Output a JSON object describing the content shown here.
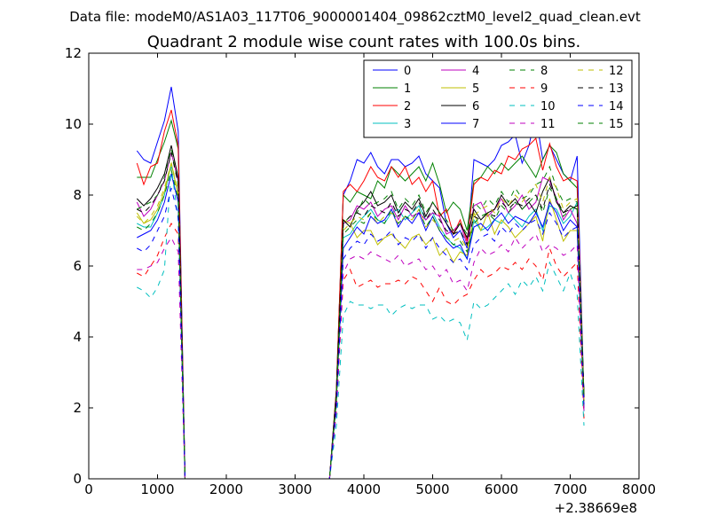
{
  "figure": {
    "suptitle": "Data file: modeM0/AS1A03_117T06_9000001404_09862cztM0_level2_quad_clean.evt"
  },
  "chart_data": {
    "type": "line",
    "title": "Quadrant 2 module wise count rates with 100.0s bins.",
    "xlabel": "",
    "ylabel": "",
    "x_offset_label": "+2.38669e8",
    "xlim": [
      0,
      8000
    ],
    "ylim": [
      0,
      12
    ],
    "xticks": [
      0,
      1000,
      2000,
      3000,
      4000,
      5000,
      6000,
      7000,
      8000
    ],
    "yticks": [
      0,
      2,
      4,
      6,
      8,
      10,
      12
    ],
    "legend_location": "upper-right",
    "legend_columns": 4,
    "x": [
      700,
      800,
      900,
      1000,
      1100,
      1200,
      1300,
      1400,
      1500,
      3500,
      3600,
      3700,
      3800,
      3900,
      4000,
      4100,
      4200,
      4300,
      4400,
      4500,
      4600,
      4700,
      4800,
      4900,
      5000,
      5100,
      5200,
      5300,
      5400,
      5500,
      5600,
      5700,
      5800,
      5900,
      6000,
      6100,
      6200,
      6300,
      6400,
      6500,
      6600,
      6700,
      6800,
      6900,
      7000,
      7100,
      7200
    ],
    "series": [
      {
        "name": "0",
        "color": "#0000ff",
        "dash": "solid",
        "values": [
          9.25,
          9.0,
          8.9,
          9.5,
          10.1,
          11.05,
          9.8,
          0,
          0,
          0,
          2.5,
          8.0,
          8.4,
          9.0,
          8.9,
          9.2,
          8.8,
          8.6,
          9.0,
          9.0,
          8.8,
          8.9,
          9.1,
          8.6,
          8.4,
          8.2,
          7.2,
          6.8,
          7.0,
          6.5,
          9.0,
          8.9,
          8.8,
          9.0,
          9.4,
          9.5,
          9.7,
          8.9,
          9.4,
          10.25,
          9.0,
          9.4,
          9.0,
          8.6,
          8.4,
          9.1,
          2.3
        ]
      },
      {
        "name": "1",
        "color": "#008000",
        "dash": "solid",
        "values": [
          8.5,
          8.5,
          8.5,
          9.0,
          9.5,
          10.1,
          9.3,
          0,
          0,
          0,
          2.5,
          8.0,
          7.8,
          8.1,
          8.0,
          7.9,
          8.4,
          8.2,
          8.8,
          8.6,
          8.4,
          8.6,
          8.8,
          8.4,
          8.9,
          8.3,
          7.5,
          7.8,
          7.6,
          7.0,
          8.4,
          8.5,
          8.8,
          8.6,
          8.9,
          8.7,
          8.9,
          9.1,
          8.8,
          8.5,
          9.0,
          9.4,
          9.2,
          8.6,
          8.4,
          8.2,
          2.3
        ]
      },
      {
        "name": "2",
        "color": "#ff0000",
        "dash": "solid",
        "values": [
          8.9,
          8.3,
          8.8,
          8.9,
          9.8,
          10.4,
          9.4,
          0,
          0,
          0,
          2.5,
          8.1,
          8.3,
          8.1,
          8.4,
          8.8,
          8.5,
          8.4,
          8.8,
          8.5,
          8.8,
          8.3,
          8.5,
          8.1,
          8.4,
          7.4,
          7.6,
          6.9,
          7.3,
          6.7,
          8.3,
          8.5,
          8.4,
          8.7,
          8.6,
          9.1,
          9.0,
          9.3,
          9.4,
          9.6,
          8.7,
          9.45,
          8.8,
          8.4,
          8.5,
          8.4,
          2.2
        ]
      },
      {
        "name": "3",
        "color": "#00bfbf",
        "dash": "solid",
        "values": [
          7.2,
          7.1,
          7.1,
          7.5,
          8.0,
          8.9,
          8.0,
          0,
          0,
          0,
          2.2,
          6.8,
          6.9,
          7.2,
          7.4,
          7.6,
          7.3,
          7.2,
          7.5,
          7.6,
          7.3,
          7.5,
          7.7,
          7.3,
          7.5,
          7.1,
          6.8,
          6.6,
          6.5,
          6.2,
          7.3,
          7.0,
          7.1,
          7.3,
          7.2,
          7.5,
          7.3,
          7.1,
          7.4,
          7.6,
          7.0,
          7.7,
          7.6,
          7.2,
          7.4,
          7.8,
          1.9
        ]
      },
      {
        "name": "4",
        "color": "#bf00bf",
        "dash": "solid",
        "values": [
          7.8,
          7.4,
          7.6,
          8.0,
          8.4,
          9.2,
          8.4,
          0,
          0,
          0,
          2.3,
          7.2,
          7.3,
          7.7,
          7.6,
          7.8,
          7.4,
          7.6,
          7.7,
          7.3,
          7.7,
          7.4,
          7.5,
          7.3,
          7.5,
          7.4,
          6.9,
          7.0,
          7.2,
          6.6,
          7.7,
          7.8,
          7.4,
          7.6,
          7.9,
          7.5,
          7.7,
          8.0,
          7.6,
          7.8,
          8.5,
          8.4,
          7.9,
          7.3,
          7.6,
          7.2,
          2.1
        ]
      },
      {
        "name": "5",
        "color": "#bfbf00",
        "dash": "solid",
        "values": [
          7.5,
          7.2,
          7.3,
          7.6,
          8.1,
          8.9,
          8.0,
          0,
          0,
          0,
          2.3,
          7.3,
          7.2,
          6.8,
          7.0,
          7.0,
          6.6,
          6.8,
          6.9,
          6.7,
          6.5,
          6.8,
          6.9,
          6.6,
          6.8,
          6.3,
          6.5,
          6.1,
          6.4,
          6.3,
          7.5,
          7.0,
          7.5,
          6.9,
          7.3,
          7.1,
          6.8,
          7.0,
          7.2,
          7.4,
          6.7,
          7.9,
          7.3,
          6.7,
          7.0,
          7.0,
          2.0
        ]
      },
      {
        "name": "6",
        "color": "#000000",
        "dash": "solid",
        "values": [
          7.9,
          7.7,
          7.9,
          8.2,
          8.6,
          9.4,
          8.5,
          0,
          0,
          0,
          2.4,
          7.3,
          7.1,
          7.6,
          7.8,
          8.1,
          7.7,
          7.8,
          8.0,
          7.5,
          7.8,
          7.6,
          7.9,
          7.4,
          7.8,
          7.5,
          7.2,
          6.9,
          7.2,
          6.8,
          7.6,
          7.3,
          7.5,
          7.6,
          8.0,
          7.7,
          7.9,
          7.6,
          7.8,
          7.5,
          8.1,
          8.5,
          7.8,
          7.5,
          7.7,
          7.6,
          2.4
        ]
      },
      {
        "name": "7",
        "color": "#0000ff",
        "dash": "solid",
        "values": [
          6.8,
          6.9,
          7.0,
          7.3,
          7.8,
          8.6,
          7.8,
          0,
          0,
          0,
          2.2,
          6.5,
          6.8,
          7.1,
          6.9,
          7.4,
          7.2,
          7.3,
          7.6,
          7.1,
          7.4,
          7.2,
          7.5,
          7.0,
          7.4,
          7.0,
          6.7,
          6.5,
          6.6,
          6.2,
          7.1,
          7.2,
          7.0,
          7.3,
          7.5,
          7.2,
          7.4,
          7.3,
          7.2,
          7.5,
          7.1,
          7.8,
          7.5,
          7.0,
          7.3,
          7.1,
          2.0
        ]
      },
      {
        "name": "8",
        "color": "#008000",
        "dash": "dashed",
        "values": [
          7.6,
          7.7,
          7.8,
          8.0,
          8.5,
          9.3,
          8.3,
          0,
          0,
          0,
          2.3,
          7.2,
          7.4,
          7.5,
          7.9,
          7.7,
          7.8,
          7.9,
          8.1,
          7.6,
          7.9,
          7.7,
          8.0,
          7.5,
          7.8,
          7.5,
          7.3,
          7.0,
          7.2,
          6.9,
          7.8,
          7.6,
          7.9,
          7.7,
          8.1,
          7.8,
          8.2,
          7.9,
          8.0,
          8.3,
          8.4,
          8.8,
          8.2,
          7.8,
          7.9,
          7.8,
          2.3
        ]
      },
      {
        "name": "9",
        "color": "#ff0000",
        "dash": "dashed",
        "values": [
          5.8,
          5.7,
          6.0,
          6.3,
          6.8,
          7.2,
          6.9,
          0,
          0,
          0,
          1.9,
          5.6,
          5.9,
          5.4,
          5.5,
          5.6,
          5.4,
          5.5,
          5.5,
          5.6,
          5.5,
          5.7,
          5.6,
          5.3,
          5.0,
          5.4,
          5.0,
          4.9,
          5.1,
          5.2,
          5.6,
          5.9,
          5.7,
          5.8,
          6.0,
          5.9,
          6.1,
          5.9,
          6.2,
          6.0,
          5.6,
          6.5,
          6.0,
          5.7,
          5.9,
          6.1,
          1.7
        ]
      },
      {
        "name": "10",
        "color": "#00bfbf",
        "dash": "dashed",
        "values": [
          5.4,
          5.3,
          5.1,
          5.4,
          5.9,
          8.8,
          7.3,
          0,
          0,
          0,
          1.5,
          4.6,
          5.0,
          4.9,
          4.9,
          4.8,
          4.9,
          4.9,
          4.6,
          4.8,
          4.9,
          4.8,
          4.9,
          4.9,
          4.5,
          4.6,
          4.4,
          4.5,
          4.4,
          3.9,
          5.0,
          4.8,
          4.9,
          5.1,
          5.3,
          5.5,
          5.2,
          5.6,
          5.4,
          5.7,
          5.3,
          6.1,
          5.7,
          5.3,
          5.8,
          5.2,
          1.5
        ]
      },
      {
        "name": "11",
        "color": "#bf00bf",
        "dash": "dashed",
        "values": [
          5.9,
          5.9,
          6.0,
          6.1,
          6.5,
          6.8,
          6.4,
          0,
          0,
          0,
          1.9,
          5.8,
          6.2,
          6.3,
          6.2,
          6.4,
          6.3,
          6.2,
          6.1,
          6.3,
          6.0,
          6.1,
          6.2,
          5.9,
          6.0,
          5.7,
          5.9,
          5.5,
          5.6,
          5.3,
          6.1,
          6.5,
          6.3,
          6.4,
          6.6,
          6.4,
          6.8,
          6.5,
          6.7,
          6.9,
          6.4,
          6.6,
          6.5,
          6.3,
          6.4,
          6.6,
          1.9
        ]
      },
      {
        "name": "12",
        "color": "#bfbf00",
        "dash": "dashed",
        "values": [
          7.4,
          7.2,
          7.4,
          7.7,
          8.2,
          8.9,
          8.1,
          0,
          0,
          0,
          2.2,
          7.0,
          7.2,
          7.4,
          7.3,
          7.5,
          7.2,
          7.4,
          7.5,
          7.2,
          7.4,
          7.3,
          7.6,
          7.1,
          7.3,
          7.1,
          6.8,
          6.7,
          6.8,
          6.5,
          7.4,
          7.6,
          7.7,
          7.5,
          7.9,
          7.7,
          8.0,
          7.8,
          8.1,
          8.3,
          7.8,
          8.5,
          8.2,
          7.6,
          7.8,
          7.9,
          2.2
        ]
      },
      {
        "name": "13",
        "color": "#000000",
        "dash": "dashed",
        "values": [
          7.6,
          7.5,
          7.7,
          8.0,
          8.4,
          9.2,
          8.3,
          0,
          0,
          0,
          2.3,
          7.2,
          7.4,
          7.5,
          7.4,
          7.7,
          7.6,
          7.5,
          7.8,
          7.4,
          7.6,
          7.5,
          7.8,
          7.3,
          7.6,
          7.3,
          7.0,
          6.9,
          7.0,
          6.6,
          7.4,
          7.3,
          7.5,
          7.4,
          7.8,
          7.6,
          7.8,
          7.7,
          7.9,
          8.0,
          7.6,
          8.3,
          7.9,
          7.5,
          7.6,
          7.7,
          2.3
        ]
      },
      {
        "name": "14",
        "color": "#0000ff",
        "dash": "dashed",
        "values": [
          6.5,
          6.4,
          6.6,
          7.0,
          7.4,
          8.2,
          7.4,
          0,
          0,
          0,
          2.0,
          6.2,
          6.5,
          6.7,
          6.6,
          6.9,
          6.7,
          6.8,
          7.0,
          6.6,
          6.8,
          6.7,
          6.9,
          6.5,
          6.8,
          6.5,
          6.3,
          6.1,
          6.2,
          5.9,
          6.6,
          6.8,
          6.9,
          6.7,
          7.1,
          6.9,
          7.2,
          7.0,
          7.2,
          7.3,
          6.9,
          7.5,
          7.2,
          6.8,
          7.0,
          7.1,
          2.1
        ]
      },
      {
        "name": "15",
        "color": "#008000",
        "dash": "dashed",
        "values": [
          7.1,
          7.0,
          7.2,
          7.5,
          8.0,
          8.7,
          7.9,
          0,
          0,
          0,
          2.2,
          6.9,
          7.1,
          7.3,
          7.2,
          7.5,
          7.3,
          7.2,
          7.6,
          7.2,
          7.4,
          7.3,
          7.6,
          7.1,
          7.4,
          7.0,
          6.8,
          6.6,
          6.7,
          6.4,
          7.2,
          7.4,
          7.5,
          7.3,
          7.7,
          7.5,
          7.8,
          7.6,
          7.8,
          8.0,
          7.5,
          8.2,
          7.9,
          7.4,
          7.6,
          7.7,
          2.2
        ]
      }
    ]
  }
}
